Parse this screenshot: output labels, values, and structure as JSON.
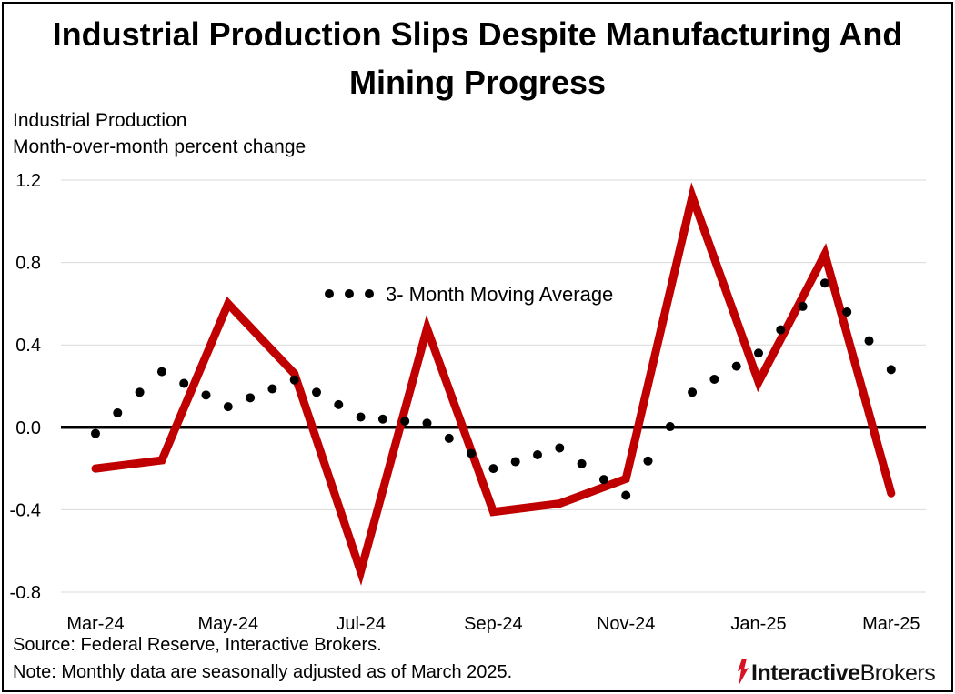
{
  "title_line1": "Industrial Production Slips Despite Manufacturing And",
  "title_line2": "Mining Progress",
  "subtitle_line1": "Industrial Production",
  "subtitle_line2": "Month-over-month percent change",
  "source": "Source: Federal Reserve, Interactive Brokers.",
  "note": "Note: Monthly data are seasonally adjusted as of March 2025.",
  "logo": {
    "part1": "Interactive",
    "part2": "Brokers",
    "icon": "interactive-brokers-flame-logo"
  },
  "colors": {
    "line": "#C00000",
    "dots": "#000000",
    "zero_line": "#000000",
    "grid": "#D9D9D9"
  },
  "chart_data": {
    "type": "line",
    "x": [
      "Mar-24",
      "Apr-24",
      "May-24",
      "Jun-24",
      "Jul-24",
      "Aug-24",
      "Sep-24",
      "Oct-24",
      "Nov-24",
      "Dec-24",
      "Jan-25",
      "Feb-25",
      "Mar-25"
    ],
    "xtick_labels": [
      "Mar-24",
      "May-24",
      "Jul-24",
      "Sep-24",
      "Nov-24",
      "Jan-25",
      "Mar-25"
    ],
    "ylim": [
      -0.8,
      1.2
    ],
    "yticks": [
      "1.2",
      "0.8",
      "0.4",
      "0.0",
      "-0.4",
      "-0.8"
    ],
    "grid": true,
    "series": [
      {
        "name": "",
        "style": "solid",
        "values": [
          -0.2,
          -0.16,
          0.6,
          0.26,
          -0.7,
          0.48,
          -0.41,
          -0.37,
          -0.25,
          1.12,
          0.22,
          0.84,
          -0.32
        ]
      },
      {
        "name": "3- Month Moving Average",
        "style": "dotted",
        "values": [
          -0.03,
          0.27,
          0.1,
          0.23,
          0.05,
          0.02,
          -0.2,
          -0.1,
          -0.33,
          0.17,
          0.36,
          0.7,
          0.28
        ]
      }
    ],
    "legend": "inside-top-center"
  }
}
